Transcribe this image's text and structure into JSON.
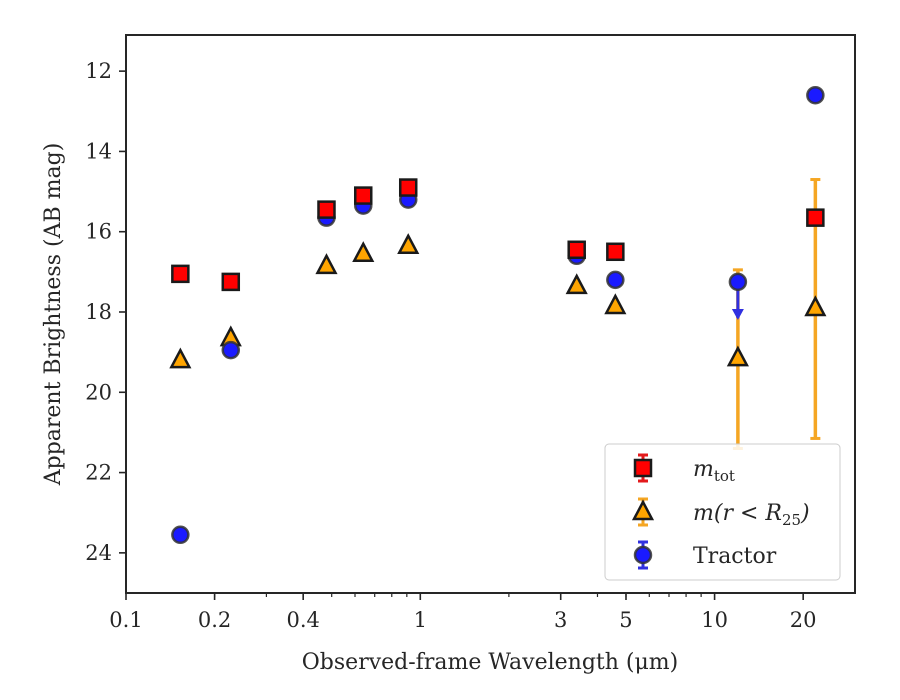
{
  "chart_data": {
    "type": "scatter",
    "xlabel": "Observed-frame Wavelength (μm)",
    "ylabel": "Apparent Brightness (AB mag)",
    "x_scale": "log",
    "xlim": [
      0.1,
      30
    ],
    "ylim": [
      25,
      11.1
    ],
    "y_inverted": true,
    "xticks": [
      {
        "value": 0.1,
        "label": "0.1"
      },
      {
        "value": 0.2,
        "label": "0.2"
      },
      {
        "value": 0.4,
        "label": "0.4"
      },
      {
        "value": 1,
        "label": "1"
      },
      {
        "value": 3,
        "label": "3"
      },
      {
        "value": 5,
        "label": "5"
      },
      {
        "value": 10,
        "label": "10"
      },
      {
        "value": 20,
        "label": "20"
      }
    ],
    "yticks": [
      {
        "value": 12,
        "label": "12"
      },
      {
        "value": 14,
        "label": "14"
      },
      {
        "value": 16,
        "label": "16"
      },
      {
        "value": 18,
        "label": "18"
      },
      {
        "value": 20,
        "label": "20"
      },
      {
        "value": 22,
        "label": "22"
      },
      {
        "value": 24,
        "label": "24"
      }
    ],
    "legend_position": "lower-right",
    "series": [
      {
        "name": "m_tot",
        "legend_main": "m",
        "legend_sub": "tot",
        "marker": "square",
        "color": "#ff0000",
        "edge": "#1a1a1a",
        "errcolor": "#e31a1c",
        "points": [
          {
            "x": 0.153,
            "y": 17.05
          },
          {
            "x": 0.227,
            "y": 17.25
          },
          {
            "x": 0.48,
            "y": 15.45
          },
          {
            "x": 0.64,
            "y": 15.1
          },
          {
            "x": 0.91,
            "y": 14.9
          },
          {
            "x": 3.4,
            "y": 16.45
          },
          {
            "x": 4.6,
            "y": 16.5
          },
          {
            "x": 22,
            "y": 15.65,
            "yerr": [
              14.7,
              21.15
            ],
            "errcolor": "#f5a623"
          }
        ]
      },
      {
        "name": "m(r < R25)",
        "legend_main": "m(r < R",
        "legend_sub": "25",
        "legend_tail": ")",
        "marker": "triangle",
        "color": "#ffa500",
        "edge": "#1a1a1a",
        "errcolor": "#f5a623",
        "points": [
          {
            "x": 0.153,
            "y": 19.2
          },
          {
            "x": 0.227,
            "y": 18.65
          },
          {
            "x": 0.48,
            "y": 16.85
          },
          {
            "x": 0.64,
            "y": 16.55
          },
          {
            "x": 0.91,
            "y": 16.35
          },
          {
            "x": 3.4,
            "y": 17.35
          },
          {
            "x": 4.6,
            "y": 17.85
          },
          {
            "x": 12,
            "y": 19.15,
            "yerr": [
              16.95,
              21.4
            ]
          },
          {
            "x": 22,
            "y": 17.9
          }
        ]
      },
      {
        "name": "Tractor",
        "marker": "circle",
        "color": "#1a1aff",
        "edge": "#333333",
        "errcolor": "#3030e0",
        "points": [
          {
            "x": 0.153,
            "y": 23.55
          },
          {
            "x": 0.227,
            "y": 18.95
          },
          {
            "x": 0.48,
            "y": 15.65
          },
          {
            "x": 0.64,
            "y": 15.35
          },
          {
            "x": 0.91,
            "y": 15.2
          },
          {
            "x": 3.4,
            "y": 16.6
          },
          {
            "x": 4.6,
            "y": 17.2
          },
          {
            "x": 12,
            "y": 17.25,
            "upper_limit": true,
            "arrow_to": 18.15
          },
          {
            "x": 22,
            "y": 12.6
          }
        ]
      }
    ]
  }
}
